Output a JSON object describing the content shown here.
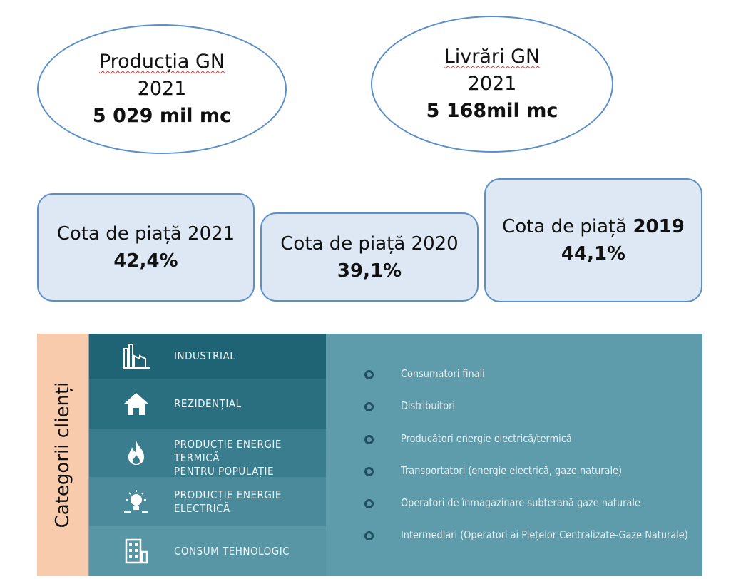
{
  "ellipses": [
    {
      "title": "Producția GN",
      "year": "2021",
      "value": "5 029 mil mc"
    },
    {
      "title": "Livrări GN",
      "year": "2021",
      "value": "5 168mil mc"
    }
  ],
  "market_share": [
    {
      "label": "Cota de piață 2021",
      "value": "42,4%"
    },
    {
      "label": "Cota de piață 2020",
      "value": "39,1%"
    },
    {
      "label_prefix": "Cota de piață",
      "year": "2019",
      "value": "44,1%"
    }
  ],
  "client_categories": {
    "side_label": "Categorii clienți",
    "categories": [
      {
        "icon": "factory-icon",
        "label": "INDUSTRIAL"
      },
      {
        "icon": "house-icon",
        "label": "REZIDENȚIAL"
      },
      {
        "icon": "flame-icon",
        "label_line1": "PRODUCȚIE ENERGIE TERMICĂ",
        "label_line2": "PENTRU POPULAȚIE"
      },
      {
        "icon": "lightbulb-icon",
        "label": "PRODUCȚIE ENERGIE ELECTRICĂ"
      },
      {
        "icon": "building-icon",
        "label": "CONSUM TEHNOLOGIC"
      }
    ],
    "types": [
      "Consumatori finali",
      "Distribuitori",
      "Producători energie electrică/termică",
      "Transportatori (energie electrică, gaze naturale)",
      "Operatori de înmagazinare subterană gaze naturale",
      "Intermediari (Operatori ai Piețelor Centralizate-Gaze Naturale)"
    ]
  },
  "colors": {
    "row_bands": [
      "#1e6475",
      "#2a6f80",
      "#3a7d8e",
      "#4a8a9b",
      "#5896a6"
    ],
    "right_panel": "#5f9cab",
    "side_label_bg": "#f7cbac",
    "box_fill": "#dde8f4",
    "outline": "#5b8fc9"
  }
}
